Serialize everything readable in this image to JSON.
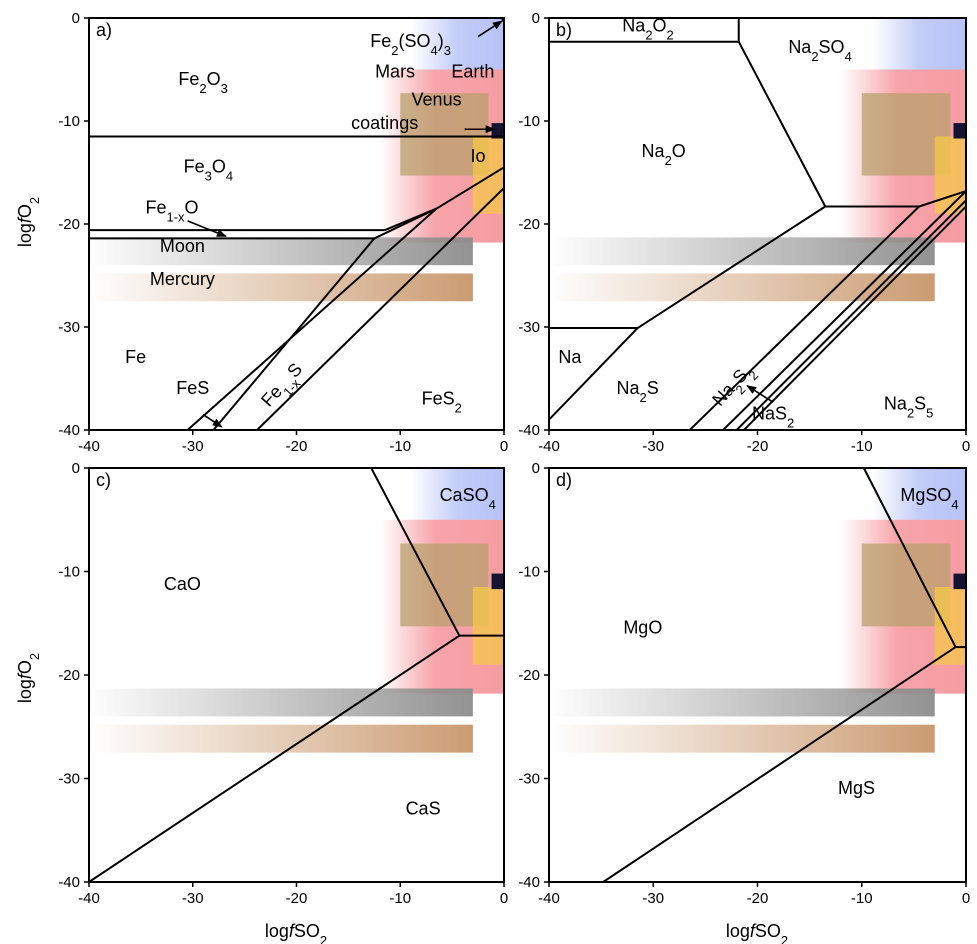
{
  "axes": {
    "xlabel": "logfSO2",
    "ylabel": "logfO2",
    "xlim": [
      -40,
      0
    ],
    "ylim": [
      -40,
      0
    ]
  },
  "colors": {
    "earth": "#7a8ff0",
    "mars": "#f05a64",
    "venus": "#b5a06a",
    "io": "#f5c84a",
    "coatings": "#141432",
    "moon": "#8c8c8c",
    "mercury": "#c8966a",
    "mars_text": "#d11a1a",
    "earth_text": "#5a2fd0",
    "venus_text": "#6e5a1c",
    "io_text": "#f7ecb0",
    "moon_text": "#5a5a5a",
    "mercury_text": "#7a1212"
  },
  "chart_data": [
    {
      "type": "phase-diagram",
      "panel_label": "a)",
      "x_ticks": [
        "-40",
        "-30",
        "-20",
        "-10",
        "0"
      ],
      "y_ticks": [
        "0",
        "-10",
        "-20",
        "-30",
        "-40"
      ],
      "phase_fields": [
        {
          "text": "Fe2O3",
          "x": -29,
          "y": -6.5
        },
        {
          "text": "Fe3O4",
          "x": -28.5,
          "y": -15
        },
        {
          "text": "Fe1-xO",
          "x": -32,
          "y": -19
        },
        {
          "text": "Fe",
          "x": -35.5,
          "y": -33.5
        },
        {
          "text": "FeS",
          "x": -30,
          "y": -36.5
        },
        {
          "text": "Fe1-xS",
          "x": -21,
          "y": -36
        },
        {
          "text": "FeS2",
          "x": -6,
          "y": -37.5
        },
        {
          "text": "Fe2(SO4)3",
          "x": -9,
          "y": -2.8
        }
      ],
      "body_labels": [
        {
          "text": "Mars",
          "x": -10.5,
          "y": -5.8
        },
        {
          "text": "Earth",
          "x": -3,
          "y": -5.8
        },
        {
          "text": "Venus",
          "x": -6.5,
          "y": -8.5
        },
        {
          "text": "coatings",
          "x": -11.5,
          "y": -10.8
        },
        {
          "text": "Io",
          "x": -2.5,
          "y": -14
        },
        {
          "text": "Moon",
          "x": -31,
          "y": -22.7
        },
        {
          "text": "Mercury",
          "x": -31,
          "y": -25.9
        }
      ],
      "boundaries": [
        [
          [
            -40,
            -11.5
          ],
          [
            0,
            -11.5
          ]
        ],
        [
          [
            -40,
            -20.6
          ],
          [
            -11.5,
            -20.6
          ]
        ],
        [
          [
            -40,
            -21.4
          ],
          [
            -12.5,
            -21.4
          ]
        ],
        [
          [
            -12.5,
            -21.4
          ],
          [
            -6.5,
            -18.5
          ]
        ],
        [
          [
            -11.5,
            -20.6
          ],
          [
            -6.5,
            -18.5
          ]
        ],
        [
          [
            -6.5,
            -18.5
          ],
          [
            0,
            -14.5
          ]
        ],
        [
          [
            -30.5,
            -40
          ],
          [
            -6.5,
            -18.5
          ]
        ],
        [
          [
            -28,
            -40
          ],
          [
            -12.5,
            -21.4
          ]
        ],
        [
          [
            -23.8,
            -40
          ],
          [
            0,
            -16.5
          ]
        ],
        [
          [
            -0.2,
            0
          ],
          [
            0,
            -0.4
          ]
        ]
      ],
      "arrows": [
        {
          "from": [
            -30.5,
            -19.7
          ],
          "to": [
            -26.8,
            -21.2
          ]
        },
        {
          "from": [
            -29,
            -38.5
          ],
          "to": [
            -27.2,
            -39.7
          ]
        },
        {
          "from": [
            -2.5,
            -1.8
          ],
          "to": [
            -0.2,
            -0.3
          ]
        },
        {
          "from": [
            -3.8,
            -10.8
          ],
          "to": [
            -0.9,
            -10.8
          ]
        }
      ]
    },
    {
      "type": "phase-diagram",
      "panel_label": "b)",
      "x_ticks": [
        "-40",
        "-30",
        "-20",
        "-10",
        "0"
      ],
      "y_ticks": [
        "0",
        "-10",
        "-20",
        "-30",
        "-40"
      ],
      "phase_fields": [
        {
          "text": "Na2O2",
          "x": -30.5,
          "y": -1.3
        },
        {
          "text": "Na2SO4",
          "x": -14,
          "y": -3.4
        },
        {
          "text": "Na2O",
          "x": -29,
          "y": -13.5
        },
        {
          "text": "Na",
          "x": -38,
          "y": -33.5
        },
        {
          "text": "Na2S",
          "x": -31.5,
          "y": -36.5
        },
        {
          "text": "Na2S2",
          "x": -22,
          "y": -36
        },
        {
          "text": "NaS2",
          "x": -18.5,
          "y": -39
        },
        {
          "text": "Na2S5",
          "x": -5.5,
          "y": -38
        }
      ],
      "body_labels": [],
      "boundaries": [
        [
          [
            -21.8,
            0
          ],
          [
            -21.8,
            -2.3
          ]
        ],
        [
          [
            -40,
            -2.3
          ],
          [
            -21.8,
            -2.3
          ]
        ],
        [
          [
            -21.8,
            -2.3
          ],
          [
            -13.5,
            -18.3
          ]
        ],
        [
          [
            -13.5,
            -18.3
          ],
          [
            -4.5,
            -18.3
          ]
        ],
        [
          [
            -4.5,
            -18.3
          ],
          [
            0,
            -16.8
          ]
        ],
        [
          [
            -40,
            -30.1
          ],
          [
            -31.5,
            -30.1
          ]
        ],
        [
          [
            -40,
            -39
          ],
          [
            -31.5,
            -30.1
          ]
        ],
        [
          [
            -31.5,
            -30.1
          ],
          [
            -13.5,
            -18.3
          ]
        ],
        [
          [
            -26.5,
            -40
          ],
          [
            -4.5,
            -18.3
          ]
        ],
        [
          [
            -23.3,
            -40
          ],
          [
            0,
            -16.8
          ]
        ],
        [
          [
            -22,
            -40
          ],
          [
            0,
            -17.7
          ]
        ],
        [
          [
            -21.3,
            -40
          ],
          [
            0,
            -18.3
          ]
        ]
      ],
      "arrows": [
        {
          "from": [
            -18.5,
            -37.3
          ],
          "to": [
            -21,
            -35.7
          ]
        }
      ]
    },
    {
      "type": "phase-diagram",
      "panel_label": "c)",
      "x_ticks": [
        "-40",
        "-30",
        "-20",
        "-10",
        "0"
      ],
      "y_ticks": [
        "0",
        "-10",
        "-20",
        "-30",
        "-40"
      ],
      "phase_fields": [
        {
          "text": "CaSO4",
          "x": -3.5,
          "y": -3.2
        },
        {
          "text": "CaO",
          "x": -31,
          "y": -11.8
        },
        {
          "text": "CaS",
          "x": -7.8,
          "y": -33.5
        }
      ],
      "body_labels": [],
      "boundaries": [
        [
          [
            -12.8,
            0
          ],
          [
            -4.3,
            -16.2
          ]
        ],
        [
          [
            -4.3,
            -16.2
          ],
          [
            0,
            -16.2
          ]
        ],
        [
          [
            -40,
            -40
          ],
          [
            -4.3,
            -16.2
          ]
        ]
      ],
      "arrows": []
    },
    {
      "type": "phase-diagram",
      "panel_label": "d)",
      "x_ticks": [
        "-40",
        "-30",
        "-20",
        "-10",
        "0"
      ],
      "y_ticks": [
        "0",
        "-10",
        "-20",
        "-30",
        "-40"
      ],
      "phase_fields": [
        {
          "text": "MgSO4",
          "x": -3.5,
          "y": -3.2
        },
        {
          "text": "MgO",
          "x": -31,
          "y": -16
        },
        {
          "text": "MgS",
          "x": -10.5,
          "y": -31.5
        }
      ],
      "body_labels": [],
      "boundaries": [
        [
          [
            -9.8,
            0
          ],
          [
            -1,
            -17.3
          ]
        ],
        [
          [
            -1,
            -17.3
          ],
          [
            0,
            -17.3
          ]
        ],
        [
          [
            -34.8,
            -40
          ],
          [
            -1,
            -17.3
          ]
        ]
      ],
      "arrows": []
    }
  ]
}
